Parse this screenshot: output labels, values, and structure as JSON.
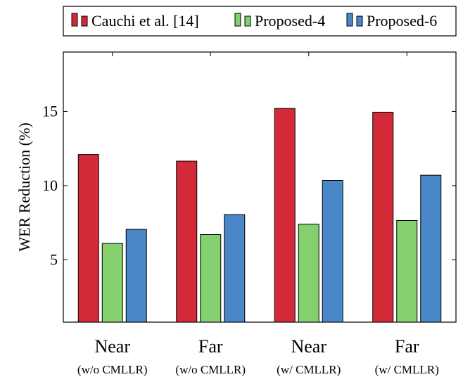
{
  "chart_data": {
    "type": "bar",
    "title": "",
    "xlabel": "",
    "ylabel": "WER Reduction (%)",
    "ylim": [
      0.8,
      19
    ],
    "yticks": [
      5,
      10,
      15
    ],
    "grid": false,
    "legend_position": "top",
    "categories": [
      "Near",
      "Far",
      "Near",
      "Far"
    ],
    "category_sublabels": [
      "(w/o CMLLR)",
      "(w/o CMLLR)",
      "(w/ CMLLR)",
      "(w/ CMLLR)"
    ],
    "series": [
      {
        "name": "Cauchi et al. [14]",
        "color": "#d42a38",
        "values": [
          12.1,
          11.65,
          15.2,
          14.95
        ]
      },
      {
        "name": "Proposed-4",
        "color": "#84d06e",
        "values": [
          6.1,
          6.7,
          7.4,
          7.65
        ]
      },
      {
        "name": "Proposed-6",
        "color": "#4a87c8",
        "values": [
          7.05,
          8.05,
          10.35,
          10.7
        ]
      }
    ]
  }
}
